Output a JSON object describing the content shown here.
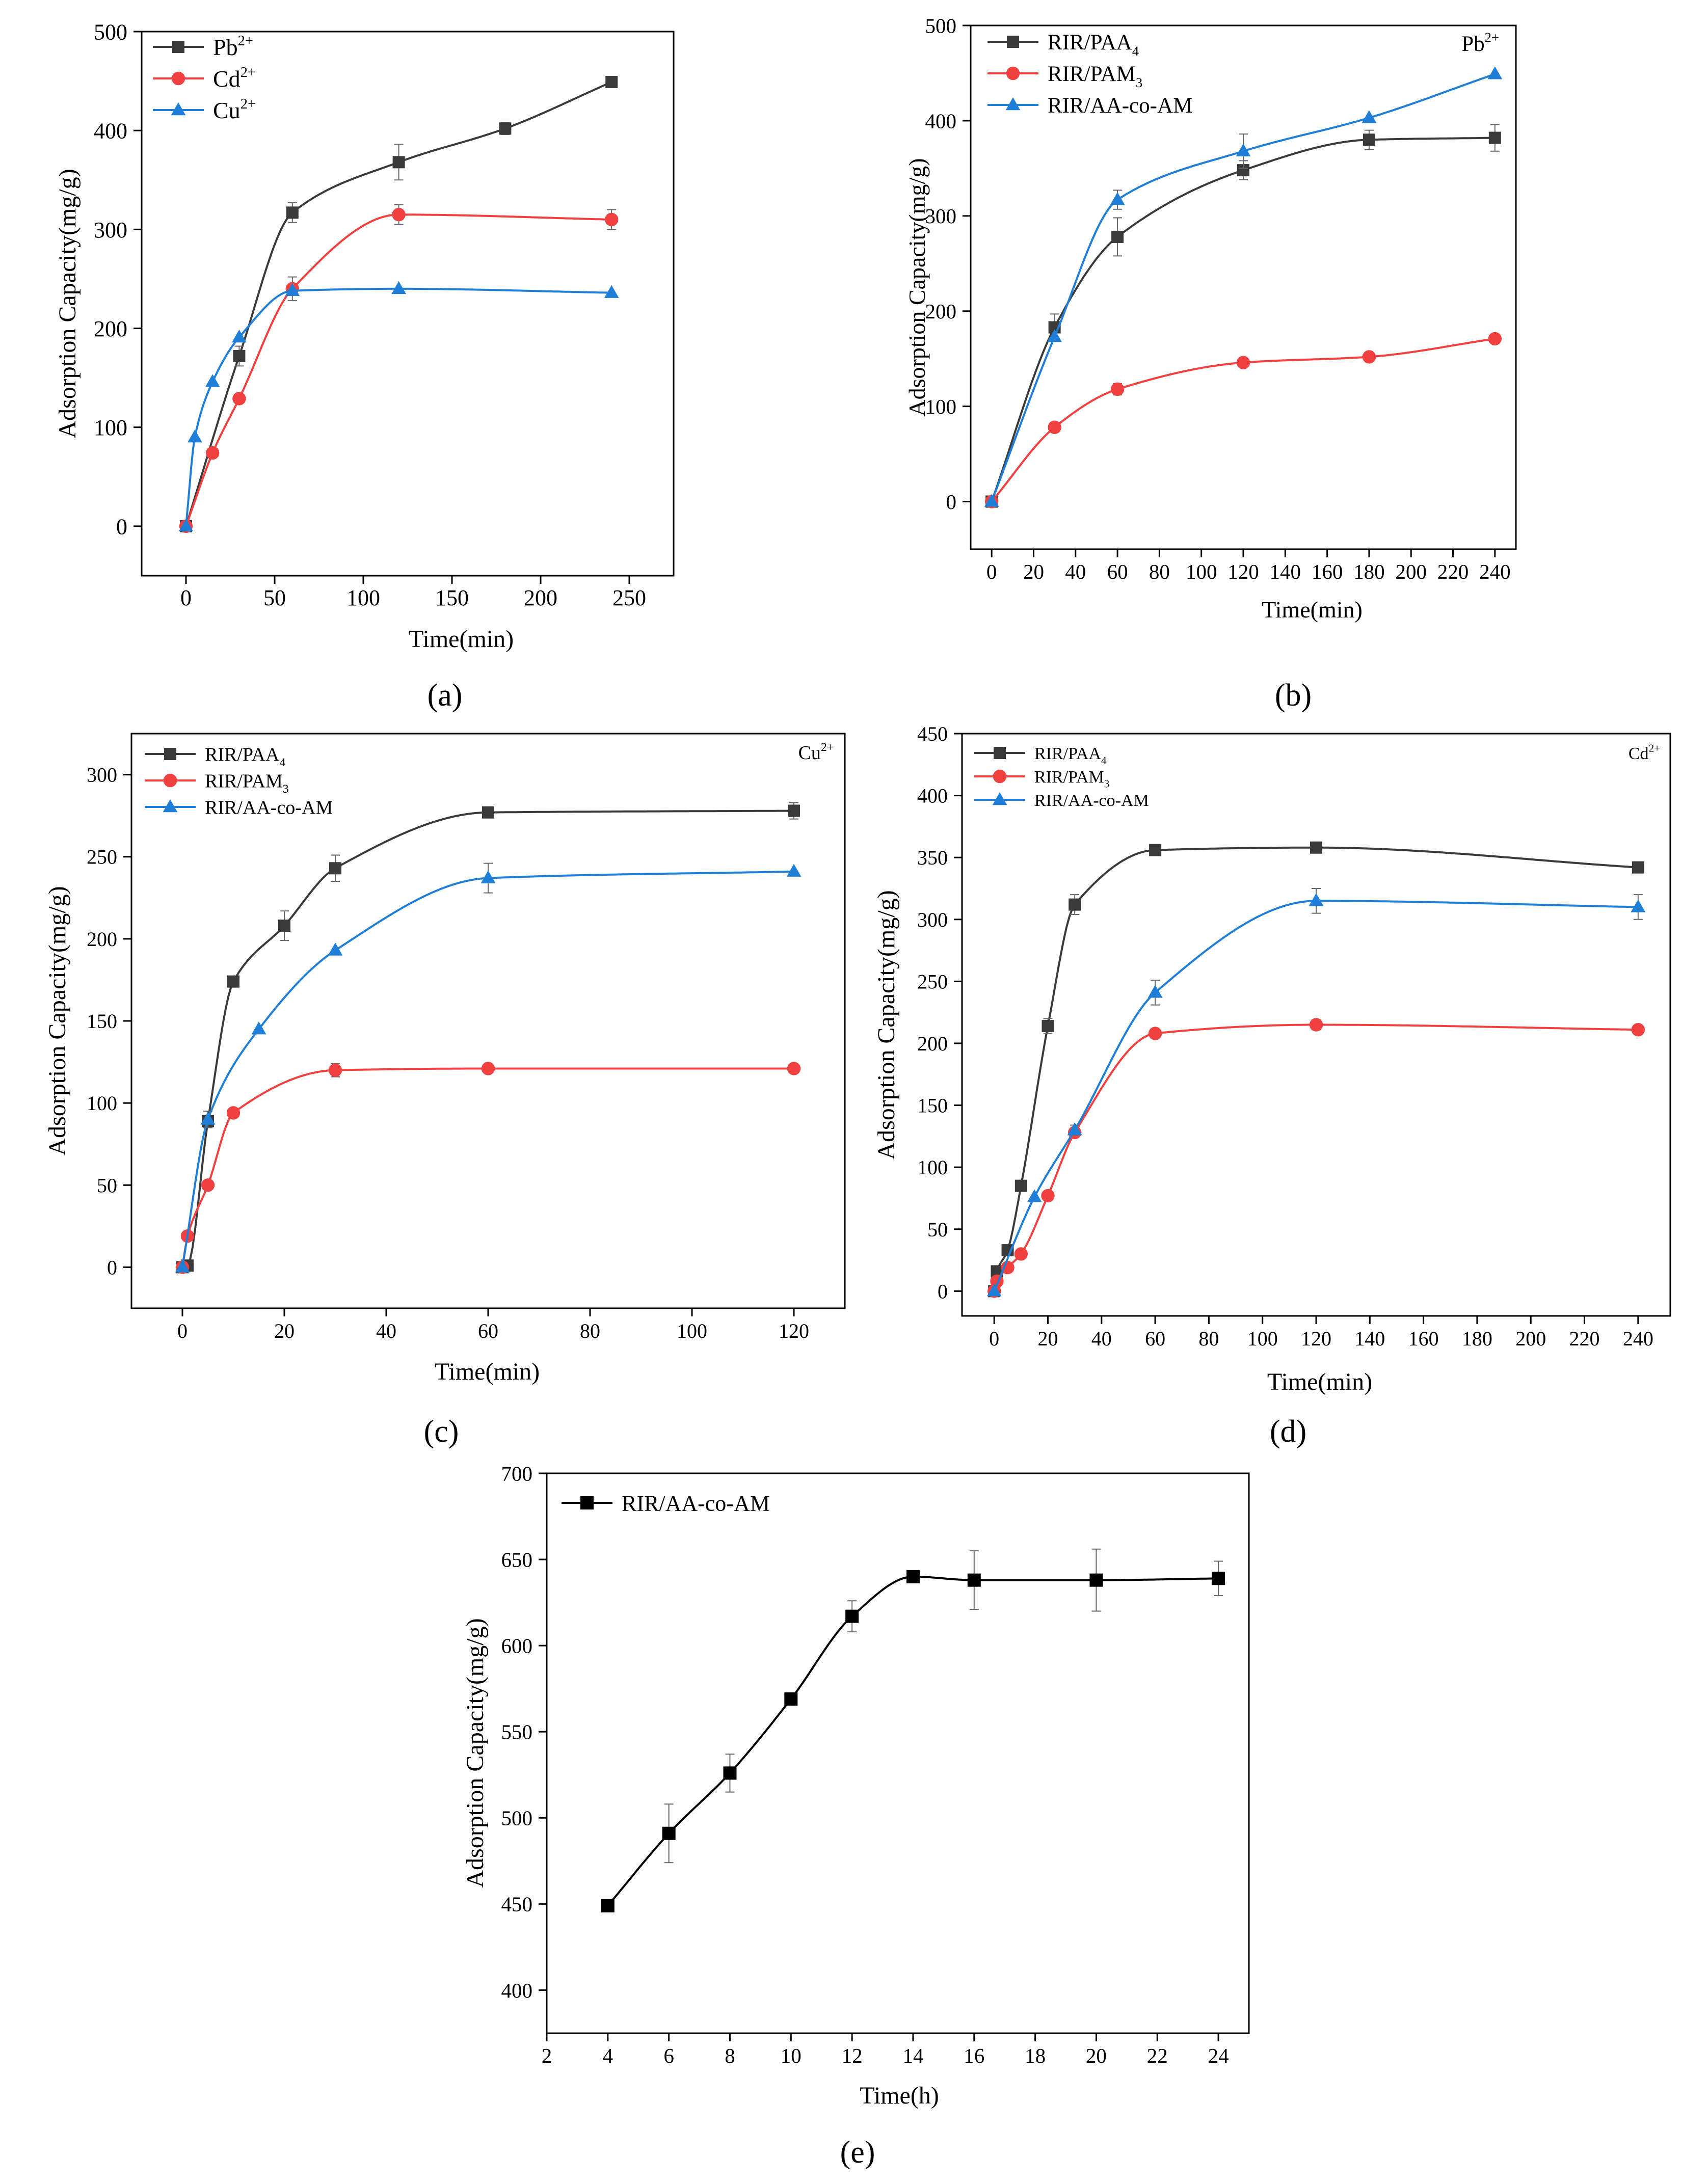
{
  "figure_labels": [
    "(a)",
    "(b)",
    "(c)",
    "(d)",
    "(e)"
  ],
  "colors": {
    "black": "#3a3a3a",
    "red": "#f04040",
    "blue": "#1f7fd6",
    "solid_black": "#000000"
  },
  "chart_data": [
    {
      "id": "a",
      "type": "line",
      "panel_label": "(a)",
      "xlabel": "Time(min)",
      "ylabel": "Adsorption Capacity(mg/g)",
      "xlim": [
        -25,
        275
      ],
      "ylim": [
        -50,
        500
      ],
      "xticks": [
        0,
        50,
        100,
        150,
        200,
        250
      ],
      "yticks": [
        0,
        100,
        200,
        300,
        400,
        500
      ],
      "corner_label": null,
      "series": [
        {
          "name": "Pb2+",
          "legend": {
            "base": "Pb",
            "sup": "2+"
          },
          "color": "#3a3a3a",
          "marker": "square",
          "x": [
            0,
            30,
            60,
            120,
            180,
            240
          ],
          "y": [
            0,
            172,
            317,
            368,
            402,
            449
          ],
          "err": [
            0,
            10,
            10,
            18,
            6,
            0
          ]
        },
        {
          "name": "Cd2+",
          "legend": {
            "base": "Cd",
            "sup": "2+"
          },
          "color": "#f04040",
          "marker": "circle",
          "x": [
            0,
            15,
            30,
            60,
            120,
            240
          ],
          "y": [
            0,
            74,
            129,
            240,
            315,
            310
          ],
          "err": [
            0,
            0,
            0,
            12,
            10,
            10
          ]
        },
        {
          "name": "Cu2+",
          "legend": {
            "base": "Cu",
            "sup": "2+"
          },
          "color": "#1f7fd6",
          "marker": "triangle",
          "x": [
            0,
            5,
            15,
            30,
            60,
            120,
            240
          ],
          "y": [
            0,
            90,
            146,
            191,
            238,
            240,
            236
          ],
          "err": [
            0,
            0,
            0,
            0,
            0,
            0,
            0
          ]
        }
      ]
    },
    {
      "id": "b",
      "type": "line",
      "panel_label": "(b)",
      "xlabel": "Time(min)",
      "ylabel": "Adsorption Capacity(mg/g)",
      "xlim": [
        -10,
        250
      ],
      "ylim": [
        -50,
        500
      ],
      "xticks": [
        0,
        20,
        40,
        60,
        80,
        100,
        120,
        140,
        160,
        180,
        200,
        220,
        240
      ],
      "yticks": [
        0,
        100,
        200,
        300,
        400,
        500
      ],
      "corner_label": {
        "base": "Pb",
        "sup": "2+"
      },
      "series": [
        {
          "name": "RIR/PAA4",
          "legend": {
            "base": "RIR/PAA",
            "sub": "4"
          },
          "color": "#3a3a3a",
          "marker": "square",
          "x": [
            0,
            30,
            60,
            120,
            180,
            240
          ],
          "y": [
            0,
            183,
            278,
            348,
            380,
            382
          ],
          "err": [
            0,
            14,
            20,
            10,
            10,
            14
          ]
        },
        {
          "name": "RIR/PAM3",
          "legend": {
            "base": "RIR/PAM",
            "sub": "3"
          },
          "color": "#f04040",
          "marker": "circle",
          "x": [
            0,
            30,
            60,
            120,
            180,
            240
          ],
          "y": [
            0,
            78,
            118,
            146,
            152,
            171
          ],
          "err": [
            0,
            5,
            6,
            0,
            0,
            0
          ]
        },
        {
          "name": "RIR/AA-co-AM",
          "legend": {
            "base": "RIR/AA-co-AM"
          },
          "color": "#1f7fd6",
          "marker": "triangle",
          "x": [
            0,
            30,
            60,
            120,
            180,
            240
          ],
          "y": [
            0,
            173,
            317,
            368,
            403,
            449
          ],
          "err": [
            0,
            0,
            10,
            18,
            0,
            0
          ]
        }
      ]
    },
    {
      "id": "c",
      "type": "line",
      "panel_label": "(c)",
      "xlabel": "Time(min)",
      "ylabel": "Adsorption Capacity(mg/g)",
      "xlim": [
        -10,
        130
      ],
      "ylim": [
        -25,
        325
      ],
      "xticks": [
        0,
        20,
        40,
        60,
        80,
        100,
        120
      ],
      "yticks": [
        0,
        50,
        100,
        150,
        200,
        250,
        300
      ],
      "corner_label": {
        "base": "Cu",
        "sup": "2+"
      },
      "series": [
        {
          "name": "RIR/PAA4",
          "legend": {
            "base": "RIR/PAA",
            "sub": "4"
          },
          "color": "#3a3a3a",
          "marker": "square",
          "x": [
            0,
            1,
            5,
            10,
            20,
            30,
            60,
            120
          ],
          "y": [
            0,
            1,
            89,
            174,
            208,
            243,
            277,
            278
          ],
          "err": [
            0,
            0,
            0,
            0,
            9,
            8,
            0,
            5
          ]
        },
        {
          "name": "RIR/PAM3",
          "legend": {
            "base": "RIR/PAM",
            "sub": "3"
          },
          "color": "#f04040",
          "marker": "circle",
          "x": [
            0,
            1,
            5,
            10,
            30,
            60,
            120
          ],
          "y": [
            0,
            19,
            50,
            94,
            120,
            121,
            121
          ],
          "err": [
            0,
            0,
            0,
            0,
            4,
            0,
            0
          ]
        },
        {
          "name": "RIR/AA-co-AM",
          "legend": {
            "base": "RIR/AA-co-AM"
          },
          "color": "#1f7fd6",
          "marker": "triangle",
          "x": [
            0,
            5,
            15,
            30,
            60,
            120
          ],
          "y": [
            0,
            90,
            145,
            193,
            237,
            241
          ],
          "err": [
            0,
            5,
            0,
            0,
            9,
            0
          ]
        }
      ]
    },
    {
      "id": "d",
      "type": "line",
      "panel_label": "(d)",
      "xlabel": "Time(min)",
      "ylabel": "Adsorption Capacity(mg/g)",
      "xlim": [
        -12,
        252
      ],
      "ylim": [
        -20,
        450
      ],
      "xticks": [
        0,
        20,
        40,
        60,
        80,
        100,
        120,
        140,
        160,
        180,
        200,
        220,
        240
      ],
      "yticks": [
        0,
        50,
        100,
        150,
        200,
        250,
        300,
        350,
        400,
        450
      ],
      "corner_label": {
        "base": "Cd",
        "sup": "2+"
      },
      "series": [
        {
          "name": "RIR/PAA4",
          "legend": {
            "base": "RIR/PAA",
            "sub": "4"
          },
          "color": "#3a3a3a",
          "marker": "square",
          "x": [
            0,
            1,
            5,
            10,
            20,
            30,
            60,
            120,
            240
          ],
          "y": [
            0,
            16,
            33,
            85,
            214,
            312,
            356,
            358,
            342
          ],
          "err": [
            0,
            0,
            0,
            0,
            6,
            8,
            0,
            0,
            0
          ]
        },
        {
          "name": "RIR/PAM3",
          "legend": {
            "base": "RIR/PAM",
            "sub": "3"
          },
          "color": "#f04040",
          "marker": "circle",
          "x": [
            0,
            1,
            5,
            10,
            20,
            30,
            60,
            120,
            240
          ],
          "y": [
            0,
            8,
            19,
            30,
            77,
            128,
            208,
            215,
            211
          ],
          "err": [
            0,
            0,
            0,
            0,
            0,
            0,
            0,
            4,
            0
          ]
        },
        {
          "name": "RIR/AA-co-AM",
          "legend": {
            "base": "RIR/AA-co-AM"
          },
          "color": "#1f7fd6",
          "marker": "triangle",
          "x": [
            0,
            15,
            30,
            60,
            120,
            240
          ],
          "y": [
            0,
            76,
            130,
            241,
            315,
            310
          ],
          "err": [
            0,
            0,
            4,
            10,
            10,
            10
          ]
        }
      ]
    },
    {
      "id": "e",
      "type": "line",
      "panel_label": "(e)",
      "xlabel": "Time(h)",
      "ylabel": "Adsorption Capacity(mg/g)",
      "xlim": [
        2,
        25
      ],
      "ylim": [
        375,
        700
      ],
      "xticks": [
        2,
        4,
        6,
        8,
        10,
        12,
        14,
        16,
        18,
        20,
        22,
        24
      ],
      "yticks": [
        400,
        450,
        500,
        550,
        600,
        650,
        700
      ],
      "corner_label": null,
      "series": [
        {
          "name": "RIR/AA-co-AM",
          "legend": {
            "base": "RIR/AA-co-AM"
          },
          "color": "#000000",
          "marker": "square",
          "x": [
            4,
            6,
            8,
            10,
            12,
            14,
            16,
            20,
            24
          ],
          "y": [
            449,
            491,
            526,
            569,
            617,
            640,
            638,
            638,
            639
          ],
          "err": [
            3,
            17,
            11,
            0,
            9,
            0,
            17,
            18,
            10
          ]
        }
      ]
    }
  ]
}
